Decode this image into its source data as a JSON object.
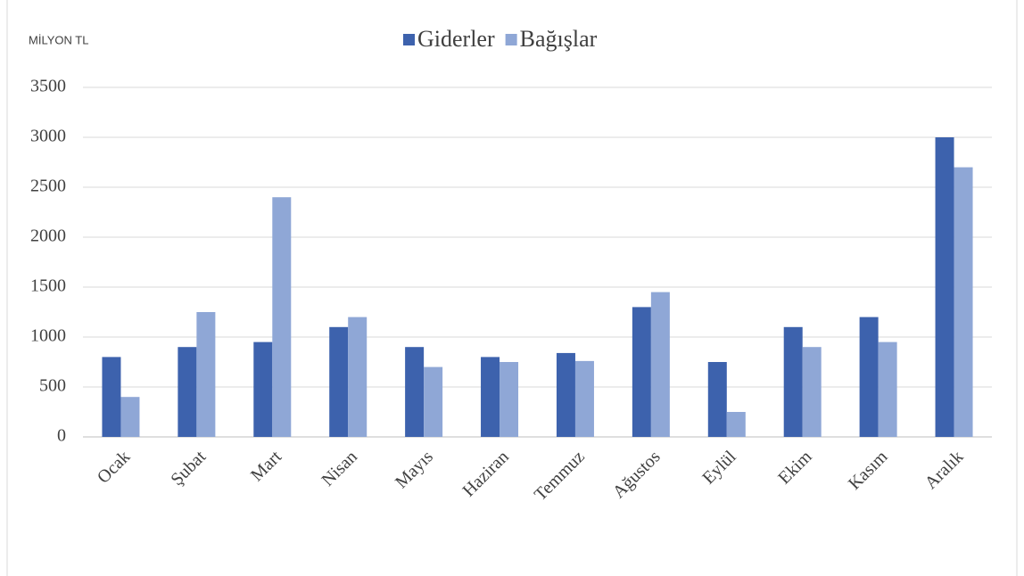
{
  "chart_data": {
    "type": "bar",
    "y_label": "MİLYON TL",
    "categories": [
      "Ocak",
      "Şubat",
      "Mart",
      "Nisan",
      "Mayıs",
      "Haziran",
      "Temmuz",
      "Ağustos",
      "Eylül",
      "Ekim",
      "Kasım",
      "Aralık"
    ],
    "series": [
      {
        "name": "Giderler",
        "color": "#3d62ad",
        "values": [
          800,
          900,
          950,
          1100,
          900,
          800,
          840,
          1300,
          750,
          1100,
          1200,
          3000
        ]
      },
      {
        "name": "Bağışlar",
        "color": "#8fa7d6",
        "values": [
          400,
          1250,
          2400,
          1200,
          700,
          750,
          760,
          1450,
          250,
          900,
          950,
          2700
        ]
      }
    ],
    "ylim": [
      0,
      3500
    ],
    "yticks": [
      0,
      500,
      1000,
      1500,
      2000,
      2500,
      3000,
      3500
    ],
    "grid": true,
    "legend": "top"
  }
}
